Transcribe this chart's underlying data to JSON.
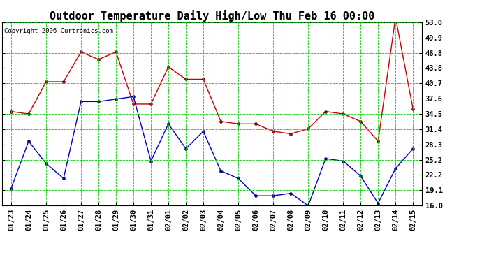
{
  "title": "Outdoor Temperature Daily High/Low Thu Feb 16 00:00",
  "copyright": "Copyright 2006 Curtronics.com",
  "x_labels": [
    "01/23",
    "01/24",
    "01/25",
    "01/26",
    "01/27",
    "01/28",
    "01/29",
    "01/30",
    "01/31",
    "02/01",
    "02/02",
    "02/03",
    "02/04",
    "02/05",
    "02/06",
    "02/07",
    "02/08",
    "02/09",
    "02/10",
    "02/11",
    "02/12",
    "02/13",
    "02/14",
    "02/15"
  ],
  "high_values": [
    35.0,
    34.5,
    41.0,
    41.0,
    47.0,
    45.5,
    47.0,
    36.5,
    36.5,
    44.0,
    41.5,
    41.5,
    33.0,
    32.5,
    32.5,
    31.0,
    30.5,
    31.5,
    35.0,
    34.5,
    33.0,
    29.0,
    54.0,
    35.5
  ],
  "low_values": [
    19.5,
    29.0,
    24.5,
    21.5,
    37.0,
    37.0,
    37.5,
    38.0,
    25.0,
    32.5,
    27.5,
    31.0,
    23.0,
    21.5,
    18.0,
    18.0,
    18.5,
    16.0,
    25.5,
    25.0,
    22.0,
    16.5,
    23.5,
    27.5
  ],
  "high_color": "#cc0000",
  "low_color": "#0000cc",
  "bg_color": "#ffffff",
  "grid_color": "#00cc00",
  "y_ticks": [
    16.0,
    19.1,
    22.2,
    25.2,
    28.3,
    31.4,
    34.5,
    37.6,
    40.7,
    43.8,
    46.8,
    49.9,
    53.0
  ],
  "y_min": 16.0,
  "y_max": 53.0,
  "title_fontsize": 11,
  "tick_fontsize": 7.5
}
